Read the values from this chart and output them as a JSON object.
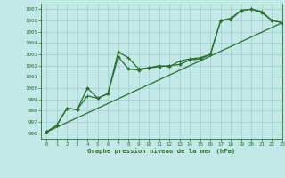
{
  "title": "Graphe pression niveau de la mer (hPa)",
  "bg_color": "#c2e8e8",
  "grid_color": "#a0cccc",
  "line_color": "#2d6e2d",
  "xlim": [
    -0.5,
    23
  ],
  "ylim": [
    995.5,
    1007.5
  ],
  "yticks": [
    996,
    997,
    998,
    999,
    1000,
    1001,
    1002,
    1003,
    1004,
    1005,
    1006,
    1007
  ],
  "xticks": [
    0,
    1,
    2,
    3,
    4,
    5,
    6,
    7,
    8,
    9,
    10,
    11,
    12,
    13,
    14,
    15,
    16,
    17,
    18,
    19,
    20,
    21,
    22,
    23
  ],
  "series1_x": [
    0,
    1,
    2,
    3,
    4,
    5,
    6,
    7,
    8,
    9,
    10,
    11,
    12,
    13,
    14,
    15,
    16,
    17,
    18,
    19,
    20,
    21,
    22,
    23
  ],
  "series1_y": [
    996.1,
    996.7,
    998.2,
    998.1,
    999.3,
    999.1,
    999.5,
    1003.2,
    1002.7,
    1001.7,
    1001.8,
    1002.0,
    1001.9,
    1002.4,
    1002.6,
    1002.7,
    1003.0,
    1006.0,
    1006.2,
    1006.9,
    1007.0,
    1006.8,
    1006.0,
    1005.8
  ],
  "series2_x": [
    0,
    1,
    2,
    3,
    4,
    5,
    6,
    7,
    8,
    9,
    10,
    11,
    12,
    13,
    14,
    15,
    16,
    17,
    18,
    19,
    20,
    21,
    22,
    23
  ],
  "series2_y": [
    996.1,
    996.7,
    998.2,
    998.1,
    1000.0,
    999.1,
    999.5,
    1002.8,
    1001.7,
    1001.6,
    1001.8,
    1001.9,
    1002.0,
    1002.1,
    1002.5,
    1002.6,
    1003.0,
    1006.0,
    1006.1,
    1006.9,
    1007.0,
    1006.7,
    1006.0,
    1005.8
  ],
  "series3_x": [
    0,
    23
  ],
  "series3_y": [
    996.1,
    1005.8
  ]
}
